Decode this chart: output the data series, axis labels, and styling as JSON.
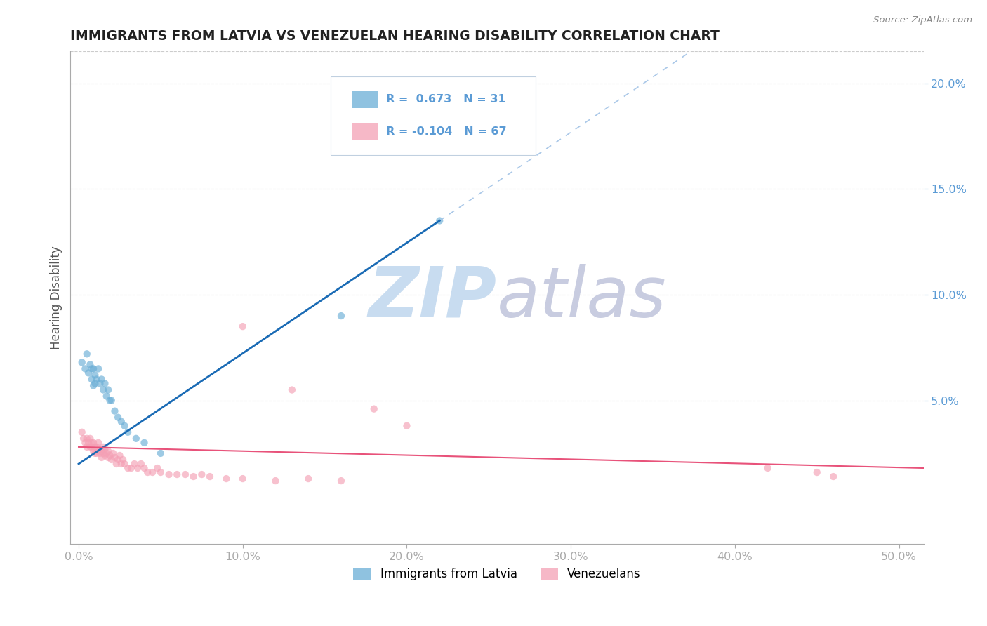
{
  "title": "IMMIGRANTS FROM LATVIA VS VENEZUELAN HEARING DISABILITY CORRELATION CHART",
  "source": "Source: ZipAtlas.com",
  "xlabel_ticks": [
    "0.0%",
    "10.0%",
    "20.0%",
    "30.0%",
    "40.0%",
    "50.0%"
  ],
  "xlabel_vals": [
    0.0,
    0.1,
    0.2,
    0.3,
    0.4,
    0.5
  ],
  "ylabel": "Hearing Disability",
  "ylabel_ticks": [
    "5.0%",
    "10.0%",
    "15.0%",
    "20.0%"
  ],
  "ylabel_vals": [
    0.05,
    0.1,
    0.15,
    0.2
  ],
  "xlim": [
    -0.005,
    0.515
  ],
  "ylim": [
    -0.018,
    0.215
  ],
  "latvia_R": 0.673,
  "latvia_N": 31,
  "venezuela_R": -0.104,
  "venezuela_N": 67,
  "latvia_color": "#6aaed6",
  "venezuela_color": "#f4a0b5",
  "latvia_line_color": "#1a6bb5",
  "venezuela_line_color": "#e8527a",
  "trend_dash_color": "#aac8e8",
  "watermark_zip_color": "#c8dcf0",
  "watermark_atlas_color": "#c8cce0",
  "background_color": "#ffffff",
  "grid_color": "#cccccc",
  "tick_label_color": "#5b9bd5",
  "title_color": "#222222",
  "legend_label_color": "#5b9bd5",
  "latvia_x": [
    0.002,
    0.004,
    0.005,
    0.006,
    0.007,
    0.008,
    0.008,
    0.009,
    0.009,
    0.01,
    0.01,
    0.011,
    0.012,
    0.013,
    0.014,
    0.015,
    0.016,
    0.017,
    0.018,
    0.019,
    0.02,
    0.022,
    0.024,
    0.026,
    0.028,
    0.03,
    0.035,
    0.04,
    0.05,
    0.16,
    0.22
  ],
  "latvia_y": [
    0.068,
    0.065,
    0.072,
    0.063,
    0.067,
    0.065,
    0.06,
    0.065,
    0.057,
    0.062,
    0.058,
    0.06,
    0.065,
    0.058,
    0.06,
    0.055,
    0.058,
    0.052,
    0.055,
    0.05,
    0.05,
    0.045,
    0.042,
    0.04,
    0.038,
    0.035,
    0.032,
    0.03,
    0.025,
    0.09,
    0.135
  ],
  "venezuela_x": [
    0.002,
    0.003,
    0.004,
    0.005,
    0.005,
    0.006,
    0.007,
    0.007,
    0.008,
    0.008,
    0.009,
    0.009,
    0.01,
    0.01,
    0.011,
    0.011,
    0.012,
    0.012,
    0.013,
    0.013,
    0.014,
    0.014,
    0.015,
    0.015,
    0.016,
    0.016,
    0.017,
    0.018,
    0.018,
    0.019,
    0.02,
    0.021,
    0.022,
    0.023,
    0.024,
    0.025,
    0.026,
    0.027,
    0.028,
    0.03,
    0.032,
    0.034,
    0.036,
    0.038,
    0.04,
    0.042,
    0.045,
    0.048,
    0.05,
    0.055,
    0.06,
    0.065,
    0.07,
    0.075,
    0.08,
    0.09,
    0.1,
    0.12,
    0.14,
    0.16,
    0.1,
    0.13,
    0.18,
    0.2,
    0.42,
    0.45,
    0.46
  ],
  "venezuela_y": [
    0.035,
    0.032,
    0.03,
    0.028,
    0.032,
    0.03,
    0.028,
    0.032,
    0.03,
    0.028,
    0.026,
    0.03,
    0.025,
    0.028,
    0.025,
    0.028,
    0.026,
    0.03,
    0.025,
    0.027,
    0.023,
    0.026,
    0.025,
    0.028,
    0.024,
    0.027,
    0.025,
    0.023,
    0.026,
    0.024,
    0.022,
    0.025,
    0.023,
    0.02,
    0.022,
    0.024,
    0.02,
    0.022,
    0.02,
    0.018,
    0.018,
    0.02,
    0.018,
    0.02,
    0.018,
    0.016,
    0.016,
    0.018,
    0.016,
    0.015,
    0.015,
    0.015,
    0.014,
    0.015,
    0.014,
    0.013,
    0.013,
    0.012,
    0.013,
    0.012,
    0.085,
    0.055,
    0.046,
    0.038,
    0.018,
    0.016,
    0.014
  ],
  "legend_box_color": "#f0f8ff",
  "legend_border_color": "#c8d8e8"
}
